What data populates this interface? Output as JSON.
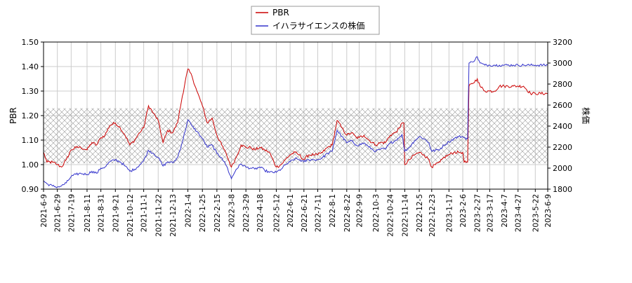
{
  "chart_data": {
    "type": "line",
    "legend": {
      "placement": "top-center",
      "entries": [
        {
          "label": "PBR",
          "color": "#cc0000"
        },
        {
          "label": "イハラサイエンスの株価",
          "color": "#3333cc"
        }
      ]
    },
    "ylabel_left": "PBR",
    "ylabel_right": "株価",
    "ylim_left": [
      0.9,
      1.5
    ],
    "ylim_right": [
      1800,
      3200
    ],
    "yticks_left": [
      "0.90",
      "1.00",
      "1.10",
      "1.20",
      "1.30",
      "1.40",
      "1.50"
    ],
    "yticks_right": [
      "1800",
      "2000",
      "2200",
      "2400",
      "2600",
      "2800",
      "3000",
      "3200"
    ],
    "xlim": [
      "2021-06-09",
      "2023-06-09"
    ],
    "xticks": [
      "2021-6-9",
      "2021-6-29",
      "2021-7-19",
      "2021-8-11",
      "2021-8-31",
      "2021-9-21",
      "2021-10-12",
      "2021-11-1",
      "2021-11-22",
      "2021-12-13",
      "2022-1-4",
      "2022-1-25",
      "2022-2-15",
      "2022-3-8",
      "2022-3-29",
      "2022-4-18",
      "2022-5-12",
      "2022-6-1",
      "2022-6-21",
      "2022-7-11",
      "2022-8-1",
      "2022-8-22",
      "2022-9-9",
      "2022-10-3",
      "2022-10-24",
      "2022-11-14",
      "2022-12-5",
      "2022-12-23",
      "2023-1-17",
      "2023-2-6",
      "2023-2-27",
      "2023-3-17",
      "2023-4-7",
      "2023-4-27",
      "2023-5-22",
      "2023-6-9"
    ],
    "grid": true,
    "hatched_band_left": [
      1.005,
      1.23
    ],
    "series": [
      {
        "name": "PBR",
        "axis": "left",
        "color": "#cc0000",
        "points": [
          [
            "2021-06-09",
            1.05
          ],
          [
            "2021-06-14",
            1.01
          ],
          [
            "2021-06-22",
            1.01
          ],
          [
            "2021-06-29",
            1.0
          ],
          [
            "2021-07-05",
            0.99
          ],
          [
            "2021-07-12",
            1.02
          ],
          [
            "2021-07-19",
            1.06
          ],
          [
            "2021-07-26",
            1.07
          ],
          [
            "2021-08-02",
            1.07
          ],
          [
            "2021-08-11",
            1.06
          ],
          [
            "2021-08-18",
            1.09
          ],
          [
            "2021-08-25",
            1.08
          ],
          [
            "2021-08-31",
            1.11
          ],
          [
            "2021-09-06",
            1.12
          ],
          [
            "2021-09-13",
            1.16
          ],
          [
            "2021-09-21",
            1.17
          ],
          [
            "2021-09-28",
            1.15
          ],
          [
            "2021-10-05",
            1.12
          ],
          [
            "2021-10-12",
            1.08
          ],
          [
            "2021-10-19",
            1.1
          ],
          [
            "2021-10-26",
            1.13
          ],
          [
            "2021-11-01",
            1.15
          ],
          [
            "2021-11-08",
            1.24
          ],
          [
            "2021-11-15",
            1.21
          ],
          [
            "2021-11-22",
            1.18
          ],
          [
            "2021-11-29",
            1.09
          ],
          [
            "2021-12-06",
            1.14
          ],
          [
            "2021-12-13",
            1.13
          ],
          [
            "2021-12-20",
            1.17
          ],
          [
            "2021-12-27",
            1.28
          ],
          [
            "2022-01-04",
            1.39
          ],
          [
            "2022-01-10",
            1.36
          ],
          [
            "2022-01-17",
            1.3
          ],
          [
            "2022-01-25",
            1.24
          ],
          [
            "2022-02-01",
            1.17
          ],
          [
            "2022-02-08",
            1.19
          ],
          [
            "2022-02-15",
            1.12
          ],
          [
            "2022-02-22",
            1.08
          ],
          [
            "2022-03-01",
            1.04
          ],
          [
            "2022-03-08",
            0.99
          ],
          [
            "2022-03-15",
            1.03
          ],
          [
            "2022-03-22",
            1.08
          ],
          [
            "2022-03-29",
            1.07
          ],
          [
            "2022-04-05",
            1.07
          ],
          [
            "2022-04-11",
            1.06
          ],
          [
            "2022-04-18",
            1.07
          ],
          [
            "2022-04-25",
            1.06
          ],
          [
            "2022-05-02",
            1.05
          ],
          [
            "2022-05-12",
            0.99
          ],
          [
            "2022-05-19",
            1.0
          ],
          [
            "2022-05-25",
            1.02
          ],
          [
            "2022-06-01",
            1.04
          ],
          [
            "2022-06-08",
            1.05
          ],
          [
            "2022-06-14",
            1.04
          ],
          [
            "2022-06-21",
            1.02
          ],
          [
            "2022-06-28",
            1.04
          ],
          [
            "2022-07-05",
            1.04
          ],
          [
            "2022-07-11",
            1.04
          ],
          [
            "2022-07-18",
            1.05
          ],
          [
            "2022-07-25",
            1.07
          ],
          [
            "2022-08-01",
            1.08
          ],
          [
            "2022-08-08",
            1.18
          ],
          [
            "2022-08-15",
            1.15
          ],
          [
            "2022-08-22",
            1.12
          ],
          [
            "2022-08-29",
            1.13
          ],
          [
            "2022-09-05",
            1.11
          ],
          [
            "2022-09-09",
            1.11
          ],
          [
            "2022-09-16",
            1.12
          ],
          [
            "2022-09-23",
            1.1
          ],
          [
            "2022-10-03",
            1.08
          ],
          [
            "2022-10-10",
            1.09
          ],
          [
            "2022-10-17",
            1.09
          ],
          [
            "2022-10-24",
            1.12
          ],
          [
            "2022-10-31",
            1.13
          ],
          [
            "2022-11-07",
            1.15
          ],
          [
            "2022-11-10",
            1.17
          ],
          [
            "2022-11-14",
            1.0
          ],
          [
            "2022-11-21",
            1.02
          ],
          [
            "2022-11-28",
            1.04
          ],
          [
            "2022-12-05",
            1.05
          ],
          [
            "2022-12-12",
            1.04
          ],
          [
            "2022-12-19",
            1.02
          ],
          [
            "2022-12-23",
            0.99
          ],
          [
            "2023-01-04",
            1.01
          ],
          [
            "2023-01-10",
            1.03
          ],
          [
            "2023-01-17",
            1.04
          ],
          [
            "2023-01-24",
            1.05
          ],
          [
            "2023-01-31",
            1.05
          ],
          [
            "2023-02-06",
            1.05
          ],
          [
            "2023-02-08",
            1.01
          ],
          [
            "2023-02-13",
            1.01
          ],
          [
            "2023-02-15",
            1.32
          ],
          [
            "2023-02-20",
            1.33
          ],
          [
            "2023-02-27",
            1.35
          ],
          [
            "2023-03-03",
            1.32
          ],
          [
            "2023-03-10",
            1.3
          ],
          [
            "2023-03-17",
            1.3
          ],
          [
            "2023-03-24",
            1.3
          ],
          [
            "2023-03-31",
            1.32
          ],
          [
            "2023-04-07",
            1.32
          ],
          [
            "2023-04-20",
            1.32
          ],
          [
            "2023-04-27",
            1.32
          ],
          [
            "2023-05-05",
            1.32
          ],
          [
            "2023-05-15",
            1.29
          ],
          [
            "2023-05-22",
            1.29
          ],
          [
            "2023-06-09",
            1.29
          ]
        ]
      },
      {
        "name": "イハラサイエンスの株価",
        "axis": "right",
        "color": "#3333cc",
        "points": [
          [
            "2021-06-09",
            1880
          ],
          [
            "2021-06-14",
            1850
          ],
          [
            "2021-06-22",
            1830
          ],
          [
            "2021-06-29",
            1820
          ],
          [
            "2021-07-05",
            1830
          ],
          [
            "2021-07-12",
            1860
          ],
          [
            "2021-07-19",
            1920
          ],
          [
            "2021-07-26",
            1940
          ],
          [
            "2021-08-02",
            1950
          ],
          [
            "2021-08-11",
            1940
          ],
          [
            "2021-08-18",
            1970
          ],
          [
            "2021-08-25",
            1950
          ],
          [
            "2021-08-31",
            2000
          ],
          [
            "2021-09-06",
            2010
          ],
          [
            "2021-09-13",
            2060
          ],
          [
            "2021-09-21",
            2080
          ],
          [
            "2021-09-28",
            2060
          ],
          [
            "2021-10-05",
            2020
          ],
          [
            "2021-10-12",
            1970
          ],
          [
            "2021-10-19",
            1990
          ],
          [
            "2021-10-26",
            2030
          ],
          [
            "2021-11-01",
            2070
          ],
          [
            "2021-11-08",
            2170
          ],
          [
            "2021-11-15",
            2140
          ],
          [
            "2021-11-22",
            2100
          ],
          [
            "2021-11-29",
            2020
          ],
          [
            "2021-12-06",
            2060
          ],
          [
            "2021-12-13",
            2050
          ],
          [
            "2021-12-20",
            2100
          ],
          [
            "2021-12-27",
            2250
          ],
          [
            "2022-01-04",
            2460
          ],
          [
            "2022-01-10",
            2400
          ],
          [
            "2022-01-17",
            2350
          ],
          [
            "2022-01-25",
            2280
          ],
          [
            "2022-02-01",
            2200
          ],
          [
            "2022-02-08",
            2220
          ],
          [
            "2022-02-15",
            2140
          ],
          [
            "2022-02-22",
            2100
          ],
          [
            "2022-03-01",
            2020
          ],
          [
            "2022-03-08",
            1900
          ],
          [
            "2022-03-15",
            1990
          ],
          [
            "2022-03-22",
            2040
          ],
          [
            "2022-03-29",
            2010
          ],
          [
            "2022-04-05",
            2000
          ],
          [
            "2022-04-11",
            1990
          ],
          [
            "2022-04-18",
            2010
          ],
          [
            "2022-04-25",
            1980
          ],
          [
            "2022-05-02",
            1960
          ],
          [
            "2022-05-12",
            1960
          ],
          [
            "2022-05-19",
            1990
          ],
          [
            "2022-05-25",
            2030
          ],
          [
            "2022-06-01",
            2060
          ],
          [
            "2022-06-08",
            2090
          ],
          [
            "2022-06-14",
            2080
          ],
          [
            "2022-06-21",
            2060
          ],
          [
            "2022-06-28",
            2080
          ],
          [
            "2022-07-05",
            2080
          ],
          [
            "2022-07-11",
            2080
          ],
          [
            "2022-07-18",
            2100
          ],
          [
            "2022-07-25",
            2140
          ],
          [
            "2022-08-01",
            2160
          ],
          [
            "2022-08-08",
            2360
          ],
          [
            "2022-08-15",
            2300
          ],
          [
            "2022-08-22",
            2240
          ],
          [
            "2022-08-29",
            2260
          ],
          [
            "2022-09-05",
            2220
          ],
          [
            "2022-09-09",
            2220
          ],
          [
            "2022-09-16",
            2240
          ],
          [
            "2022-09-23",
            2200
          ],
          [
            "2022-10-03",
            2160
          ],
          [
            "2022-10-10",
            2180
          ],
          [
            "2022-10-17",
            2180
          ],
          [
            "2022-10-24",
            2240
          ],
          [
            "2022-10-31",
            2260
          ],
          [
            "2022-11-07",
            2300
          ],
          [
            "2022-11-10",
            2320
          ],
          [
            "2022-11-14",
            2160
          ],
          [
            "2022-11-21",
            2200
          ],
          [
            "2022-11-28",
            2260
          ],
          [
            "2022-12-05",
            2300
          ],
          [
            "2022-12-12",
            2280
          ],
          [
            "2022-12-19",
            2240
          ],
          [
            "2022-12-23",
            2160
          ],
          [
            "2023-01-04",
            2180
          ],
          [
            "2023-01-10",
            2220
          ],
          [
            "2023-01-17",
            2250
          ],
          [
            "2023-01-24",
            2280
          ],
          [
            "2023-01-31",
            2300
          ],
          [
            "2023-02-06",
            2300
          ],
          [
            "2023-02-08",
            2290
          ],
          [
            "2023-02-13",
            2280
          ],
          [
            "2023-02-15",
            3000
          ],
          [
            "2023-02-20",
            3010
          ],
          [
            "2023-02-27",
            3060
          ],
          [
            "2023-03-03",
            3000
          ],
          [
            "2023-03-10",
            2980
          ],
          [
            "2023-03-17",
            2980
          ],
          [
            "2023-03-24",
            2980
          ],
          [
            "2023-03-31",
            2980
          ],
          [
            "2023-04-07",
            2980
          ],
          [
            "2023-04-20",
            2980
          ],
          [
            "2023-04-27",
            2980
          ],
          [
            "2023-05-05",
            2980
          ],
          [
            "2023-05-15",
            2980
          ],
          [
            "2023-05-22",
            2980
          ],
          [
            "2023-06-09",
            2980
          ]
        ]
      }
    ]
  }
}
